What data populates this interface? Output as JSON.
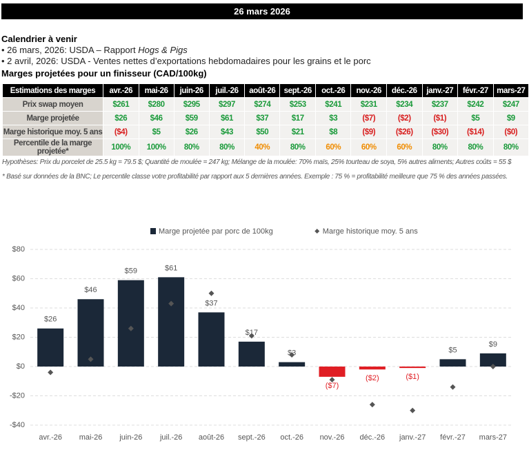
{
  "header": {
    "title": "26 mars 2026"
  },
  "calendar": {
    "title": "Calendrier à venir",
    "items": [
      {
        "text": "• 26 mars, 2026: USDA – Rapport ",
        "emphasis": "Hogs & Pigs"
      },
      {
        "text": "• 2 avril, 2026: USDA - Ventes nettes d’exportations hebdomadaires pour les grains et le porc"
      }
    ]
  },
  "table": {
    "title": "Marges projetées pour un finisseur (CAD/100kg)",
    "header": [
      "Estimations des marges",
      "avr.-26",
      "mai-26",
      "juin-26",
      "juil.-26",
      "août-26",
      "sept.-26",
      "oct.-26",
      "nov.-26",
      "déc.-26",
      "janv.-27",
      "févr.-27",
      "mars-27"
    ],
    "rows": [
      {
        "label": "Prix swap moyen",
        "cells": [
          "$261",
          "$280",
          "$295",
          "$297",
          "$274",
          "$253",
          "$241",
          "$231",
          "$234",
          "$237",
          "$242",
          "$247"
        ],
        "colors": [
          "#1a9a3a",
          "#1a9a3a",
          "#1a9a3a",
          "#1a9a3a",
          "#1a9a3a",
          "#1a9a3a",
          "#1a9a3a",
          "#1a9a3a",
          "#1a9a3a",
          "#1a9a3a",
          "#1a9a3a",
          "#1a9a3a"
        ]
      },
      {
        "label": "Marge projetée",
        "cells": [
          "$26",
          "$46",
          "$59",
          "$61",
          "$37",
          "$17",
          "$3",
          "($7)",
          "($2)",
          "($1)",
          "$5",
          "$9"
        ],
        "colors": [
          "#1a9a3a",
          "#1a9a3a",
          "#1a9a3a",
          "#1a9a3a",
          "#1a9a3a",
          "#1a9a3a",
          "#1a9a3a",
          "#d81e1e",
          "#d81e1e",
          "#d81e1e",
          "#1a9a3a",
          "#1a9a3a"
        ]
      },
      {
        "label": "Marge historique moy. 5 ans",
        "cells": [
          "($4)",
          "$5",
          "$26",
          "$43",
          "$50",
          "$21",
          "$8",
          "($9)",
          "($26)",
          "($30)",
          "($14)",
          "($0)"
        ],
        "colors": [
          "#d81e1e",
          "#1a9a3a",
          "#1a9a3a",
          "#1a9a3a",
          "#1a9a3a",
          "#1a9a3a",
          "#1a9a3a",
          "#d81e1e",
          "#d81e1e",
          "#d81e1e",
          "#d81e1e",
          "#d81e1e"
        ]
      },
      {
        "label": "Percentile de la marge projetée*",
        "cells": [
          "100%",
          "100%",
          "80%",
          "80%",
          "40%",
          "80%",
          "60%",
          "60%",
          "60%",
          "80%",
          "80%",
          "80%"
        ],
        "colors": [
          "#1a9a3a",
          "#1a9a3a",
          "#1a9a3a",
          "#1a9a3a",
          "#f08c00",
          "#1a9a3a",
          "#f08c00",
          "#f08c00",
          "#f08c00",
          "#1a9a3a",
          "#1a9a3a",
          "#1a9a3a"
        ]
      }
    ]
  },
  "notes": [
    "Hypothèses: Prix du porcelet de 25.5 kg = 79.5 $; Quantité de moulée = 247 kg; Mélange de la moulée: 70% maïs, 25% tourteau de soya, 5% autres aliments; Autres coûts = 55 $",
    "* Basé sur données de la BNC; Le percentile classe votre profitabilité par rapport aux 5 dernières années. Exemple : 75 % = profitabilité meilleure que 75 % des années passées."
  ],
  "chart_data": {
    "type": "bar",
    "categories": [
      "avr.-26",
      "mai-26",
      "juin-26",
      "juil.-26",
      "août-26",
      "sept.-26",
      "oct.-26",
      "nov.-26",
      "déc.-26",
      "janv.-27",
      "févr.-27",
      "mars-27"
    ],
    "series": [
      {
        "name": "Marge projetée par porc de 100kg",
        "type": "bar",
        "color": "#1b2838",
        "negative_color": "#e01e24",
        "values": [
          26,
          46,
          59,
          61,
          37,
          17,
          3,
          -7,
          -2,
          -1,
          5,
          9
        ],
        "value_labels": [
          "$26",
          "$46",
          "$59",
          "$61",
          "$37",
          "$17",
          "$3",
          "($7)",
          "($2)",
          "($1)",
          "$5",
          "$9"
        ]
      },
      {
        "name": "Marge historique moy. 5 ans",
        "type": "scatter",
        "color": "#555555",
        "values": [
          -4,
          5,
          26,
          43,
          50,
          21,
          8,
          -9,
          -26,
          -30,
          -14,
          0
        ]
      }
    ],
    "ylim": [
      -40,
      80
    ],
    "yticks": [
      {
        "value": -40,
        "label": "-$40"
      },
      {
        "value": -20,
        "label": "-$20"
      },
      {
        "value": 0,
        "label": "$0"
      },
      {
        "value": 20,
        "label": "$20"
      },
      {
        "value": 40,
        "label": "$40"
      },
      {
        "value": 60,
        "label": "$60"
      },
      {
        "value": 80,
        "label": "$80"
      }
    ],
    "grid": true
  }
}
